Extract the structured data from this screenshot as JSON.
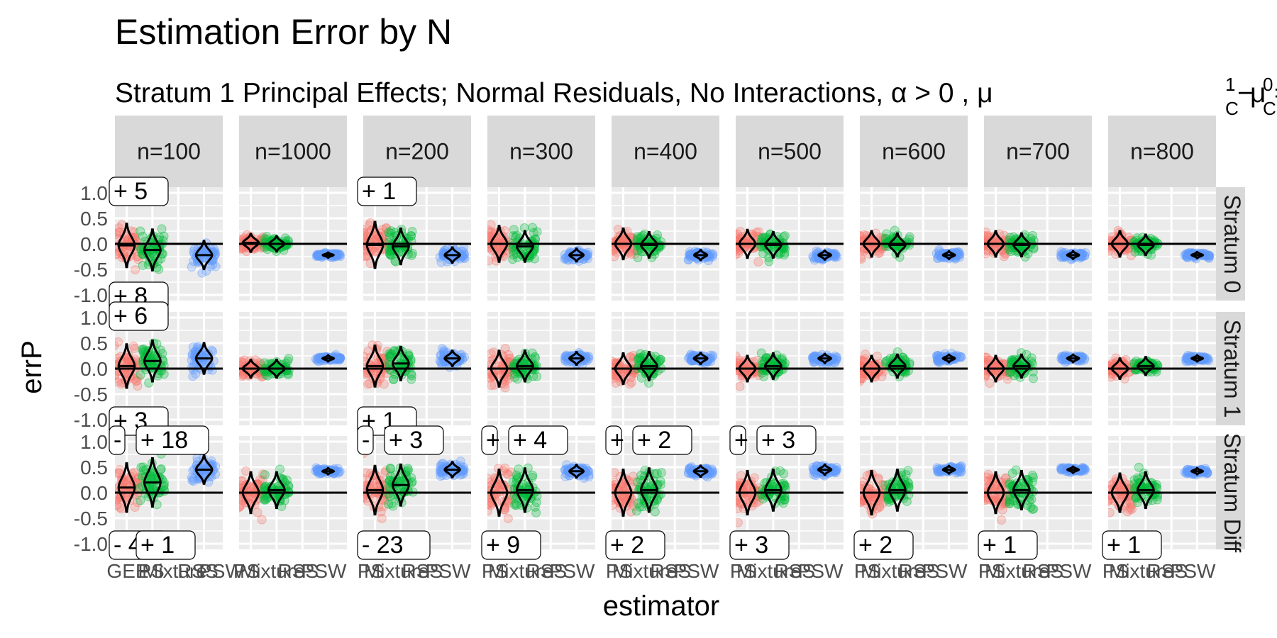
{
  "chart_data": {
    "type": "violin",
    "title": "Estimation Error by N",
    "subtitle": "Stratum 1 Principal Effects; Normal Residuals, No Interactions,  α > 0 ,  μ",
    "subtitle_math": {
      "sup1": "1",
      "sub1": "C",
      "minus": "−",
      "mu2": "μ",
      "sup2": "0",
      "sub2": "C",
      "eq": "="
    },
    "xlabel": "estimator",
    "ylabel": "errP",
    "ylim": [
      -1.0,
      1.0
    ],
    "y_ticks": [
      "1.0",
      "0.5",
      "0.0",
      "-0.5",
      "-1.0"
    ],
    "estimators": [
      "GEEPS",
      "Mixture",
      "RSS",
      "PSW"
    ],
    "bottom_axis_labels": [
      "GEE",
      "PS",
      "Mixture",
      "RSS",
      "PSW"
    ],
    "colors": {
      "GEEPS": "#F8766D",
      "Mixture": "#00BA38",
      "PSW": "#619CFF"
    },
    "col_facets": [
      "n=100",
      "n=1000",
      "n=200",
      "n=300",
      "n=400",
      "n=500",
      "n=600",
      "n=700",
      "n=800"
    ],
    "row_facets": [
      "Stratum 0",
      "Stratum 1",
      "Stratum Diff"
    ],
    "medians": [
      [
        [
          -0.03,
          -0.12,
          -0.22
        ],
        [
          0.02,
          0.0,
          -0.22
        ],
        [
          -0.02,
          -0.05,
          -0.22
        ],
        [
          0.0,
          -0.05,
          -0.22
        ],
        [
          0.0,
          -0.02,
          -0.22
        ],
        [
          0.0,
          -0.02,
          -0.22
        ],
        [
          0.0,
          -0.02,
          -0.22
        ],
        [
          0.0,
          -0.02,
          -0.22
        ],
        [
          0.0,
          -0.02,
          -0.22
        ]
      ],
      [
        [
          0.05,
          0.15,
          0.2
        ],
        [
          0.0,
          0.0,
          0.2
        ],
        [
          0.05,
          0.1,
          0.2
        ],
        [
          0.0,
          0.05,
          0.2
        ],
        [
          0.0,
          0.05,
          0.2
        ],
        [
          0.0,
          0.05,
          0.2
        ],
        [
          0.0,
          0.05,
          0.2
        ],
        [
          0.0,
          0.05,
          0.2
        ],
        [
          0.0,
          0.05,
          0.2
        ]
      ],
      [
        [
          0.1,
          0.2,
          0.45
        ],
        [
          0.0,
          0.05,
          0.42
        ],
        [
          0.05,
          0.15,
          0.45
        ],
        [
          0.0,
          0.05,
          0.42
        ],
        [
          0.0,
          0.05,
          0.42
        ],
        [
          0.0,
          0.05,
          0.45
        ],
        [
          0.0,
          0.05,
          0.45
        ],
        [
          0.0,
          0.05,
          0.45
        ],
        [
          0.0,
          0.05,
          0.42
        ]
      ]
    ],
    "spreads": [
      [
        [
          0.85,
          0.8,
          0.55
        ],
        [
          0.35,
          0.3,
          0.1
        ],
        [
          0.9,
          0.7,
          0.3
        ],
        [
          0.7,
          0.6,
          0.25
        ],
        [
          0.6,
          0.5,
          0.2
        ],
        [
          0.55,
          0.5,
          0.18
        ],
        [
          0.5,
          0.45,
          0.15
        ],
        [
          0.5,
          0.45,
          0.15
        ],
        [
          0.5,
          0.4,
          0.12
        ]
      ],
      [
        [
          0.85,
          0.8,
          0.6
        ],
        [
          0.35,
          0.35,
          0.12
        ],
        [
          0.8,
          0.65,
          0.3
        ],
        [
          0.7,
          0.6,
          0.25
        ],
        [
          0.6,
          0.55,
          0.22
        ],
        [
          0.5,
          0.5,
          0.18
        ],
        [
          0.5,
          0.45,
          0.15
        ],
        [
          0.5,
          0.45,
          0.15
        ],
        [
          0.4,
          0.35,
          0.12
        ]
      ],
      [
        [
          0.95,
          0.95,
          0.55
        ],
        [
          0.8,
          0.7,
          0.12
        ],
        [
          0.95,
          0.8,
          0.3
        ],
        [
          0.9,
          0.85,
          0.25
        ],
        [
          0.9,
          0.85,
          0.22
        ],
        [
          0.85,
          0.8,
          0.2
        ],
        [
          0.85,
          0.8,
          0.15
        ],
        [
          0.8,
          0.75,
          0.12
        ],
        [
          0.75,
          0.7,
          0.12
        ]
      ]
    ],
    "annotations": [
      {
        "col": 0,
        "row": 0,
        "pos": "top",
        "text": "+ 5",
        "offset": 0
      },
      {
        "col": 0,
        "row": 0,
        "pos": "bottom",
        "text": "+ 8",
        "offset": 0
      },
      {
        "col": 2,
        "row": 0,
        "pos": "top",
        "text": "+ 1",
        "offset": 0
      },
      {
        "col": 0,
        "row": 1,
        "pos": "top",
        "text": "+ 6",
        "offset": 0
      },
      {
        "col": 0,
        "row": 1,
        "pos": "bottom",
        "text": "+ 3",
        "offset": 0
      },
      {
        "col": 2,
        "row": 1,
        "pos": "bottom",
        "text": "+ 1",
        "offset": 0
      },
      {
        "col": 0,
        "row": 2,
        "pos": "top",
        "text": "-",
        "offset": 0
      },
      {
        "col": 0,
        "row": 2,
        "pos": "top",
        "text": "+ 18",
        "offset": 1
      },
      {
        "col": 0,
        "row": 2,
        "pos": "bottom",
        "text": "- 4",
        "offset": 0
      },
      {
        "col": 0,
        "row": 2,
        "pos": "bottom",
        "text": "+ 1",
        "offset": 1
      },
      {
        "col": 2,
        "row": 2,
        "pos": "top",
        "text": "-",
        "offset": 0
      },
      {
        "col": 2,
        "row": 2,
        "pos": "top",
        "text": "+ 3",
        "offset": 1
      },
      {
        "col": 2,
        "row": 2,
        "pos": "bottom",
        "text": "- 23",
        "offset": 0
      },
      {
        "col": 3,
        "row": 2,
        "pos": "top",
        "text": "+",
        "offset": 0
      },
      {
        "col": 3,
        "row": 2,
        "pos": "top",
        "text": "+ 4",
        "offset": 1
      },
      {
        "col": 3,
        "row": 2,
        "pos": "bottom",
        "text": "+ 9",
        "offset": 0
      },
      {
        "col": 4,
        "row": 2,
        "pos": "top",
        "text": "+",
        "offset": 0
      },
      {
        "col": 4,
        "row": 2,
        "pos": "top",
        "text": "+ 2",
        "offset": 1
      },
      {
        "col": 4,
        "row": 2,
        "pos": "bottom",
        "text": "+ 2",
        "offset": 0
      },
      {
        "col": 5,
        "row": 2,
        "pos": "top",
        "text": "+",
        "offset": 0
      },
      {
        "col": 5,
        "row": 2,
        "pos": "top",
        "text": "+ 3",
        "offset": 1
      },
      {
        "col": 5,
        "row": 2,
        "pos": "bottom",
        "text": "+ 3",
        "offset": 0
      },
      {
        "col": 6,
        "row": 2,
        "pos": "bottom",
        "text": "+ 2",
        "offset": 0
      },
      {
        "col": 7,
        "row": 2,
        "pos": "bottom",
        "text": "+ 1",
        "offset": 0
      },
      {
        "col": 8,
        "row": 2,
        "pos": "bottom",
        "text": "+ 1",
        "offset": 0
      }
    ]
  }
}
